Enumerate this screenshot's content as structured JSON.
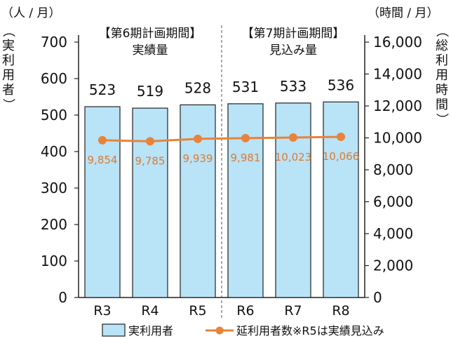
{
  "chart_data": {
    "type": "bar",
    "categories": [
      "R3",
      "R4",
      "R5",
      "R6",
      "R7",
      "R8"
    ],
    "series": [
      {
        "name": "実利用者",
        "axis": "left",
        "kind": "bar",
        "values": [
          523,
          519,
          528,
          531,
          533,
          536
        ],
        "labels": [
          "523",
          "519",
          "528",
          "531",
          "533",
          "536"
        ]
      },
      {
        "name": "延利用者数",
        "axis": "right",
        "kind": "line",
        "values": [
          9854,
          9785,
          9939,
          9981,
          10023,
          10066
        ],
        "labels": [
          "9,854",
          "9,785",
          "9,939",
          "9,981",
          "10,023",
          "10,066"
        ]
      }
    ],
    "ylim": [
      0,
      700
    ],
    "y2lim": [
      0,
      16000
    ],
    "yticks": [
      0,
      100,
      200,
      300,
      400,
      500,
      600,
      700
    ],
    "y2ticks": [
      0,
      2000,
      4000,
      6000,
      8000,
      10000,
      12000,
      14000,
      16000
    ],
    "yunit": "（人 / 月）",
    "y2unit": "（時間 / 月）",
    "ylabel": "（実利用者）",
    "y2label": "（総利用時間）",
    "periods": [
      {
        "title": "【第6期計画期間】",
        "subtitle": "実績量"
      },
      {
        "title": "【第7期計画期間】",
        "subtitle": "見込み量"
      }
    ],
    "legend": {
      "bar": "実利用者",
      "line": "延利用者数",
      "note": "※R5は実績見込み"
    },
    "colors": {
      "bar_fill": "#b9e3f7",
      "bar_stroke": "#222222",
      "line": "#e8833a",
      "line_label": "#e07a30"
    },
    "grid": false
  }
}
